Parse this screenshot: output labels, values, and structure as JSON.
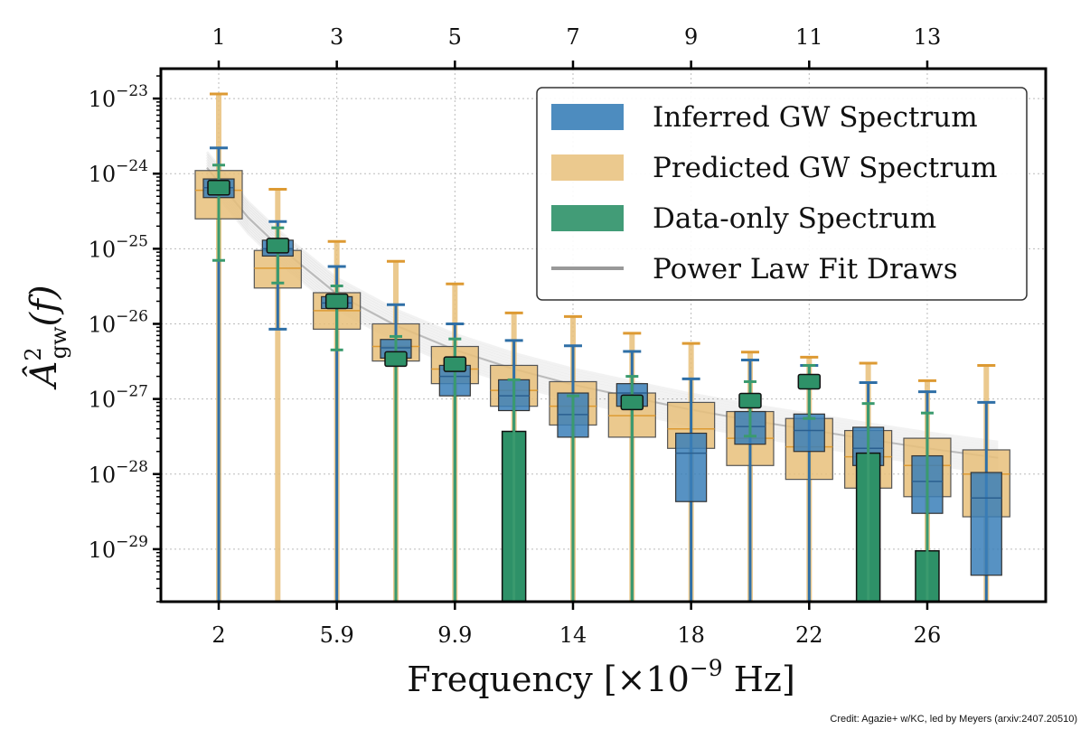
{
  "chart_data": {
    "type": "bar",
    "title": "",
    "xlabel": "Frequency [×10",
    "xlabel_exp": "−9",
    "xlabel_unit": " Hz]",
    "ylabel_main": "Â",
    "ylabel_sup": "2",
    "ylabel_sub": "gw",
    "ylabel_tail": "(f)",
    "yscale": "log",
    "ylim": [
      2e-30,
      2.5e-23
    ],
    "xlim": [
      0,
      14.5
    ],
    "bottom_ticks": [
      {
        "pos": 1,
        "label": "2"
      },
      {
        "pos": 3,
        "label": "5.9"
      },
      {
        "pos": 5,
        "label": "9.9"
      },
      {
        "pos": 7,
        "label": "14"
      },
      {
        "pos": 9,
        "label": "18"
      },
      {
        "pos": 11,
        "label": "22"
      },
      {
        "pos": 13,
        "label": "26"
      }
    ],
    "top_ticks": [
      {
        "pos": 1,
        "label": "1"
      },
      {
        "pos": 3,
        "label": "3"
      },
      {
        "pos": 5,
        "label": "5"
      },
      {
        "pos": 7,
        "label": "7"
      },
      {
        "pos": 9,
        "label": "9"
      },
      {
        "pos": 11,
        "label": "11"
      },
      {
        "pos": 13,
        "label": "13"
      }
    ],
    "y_ticks": [
      {
        "exp": -23,
        "label_base": "10",
        "label_exp": "−23"
      },
      {
        "exp": -24,
        "label_base": "10",
        "label_exp": "−24"
      },
      {
        "exp": -25,
        "label_base": "10",
        "label_exp": "−25"
      },
      {
        "exp": -26,
        "label_base": "10",
        "label_exp": "−26"
      },
      {
        "exp": -27,
        "label_base": "10",
        "label_exp": "−27"
      },
      {
        "exp": -28,
        "label_base": "10",
        "label_exp": "−28"
      },
      {
        "exp": -29,
        "label_base": "10",
        "label_exp": "−29"
      }
    ],
    "grid": true,
    "legend_position": "top-right",
    "legend": [
      {
        "label": "Inferred GW Spectrum",
        "kind": "box",
        "color": "#3a7fb8"
      },
      {
        "label": "Predicted GW Spectrum",
        "kind": "box",
        "color": "#e8c07a"
      },
      {
        "label": "Data-only Spectrum",
        "kind": "box",
        "color": "#2e9168"
      },
      {
        "label": "Power Law Fit Draws",
        "kind": "line",
        "color": "#999999"
      }
    ],
    "colors": {
      "inferred": "#3a7fb8",
      "inferred_err": "#2f6fa6",
      "predicted": "#e8c07a",
      "predicted_err": "#dd9a33",
      "dataonly": "#2e9168",
      "dataonly_err": "#3a9a6e",
      "powerlaw": "#555555"
    },
    "series": [
      {
        "name": "Predicted GW Spectrum",
        "x": [
          1,
          2,
          3,
          4,
          5,
          6,
          7,
          8,
          9,
          10,
          11,
          12,
          13,
          14
        ],
        "median": [
          6e-25,
          5.5e-26,
          1.5e-26,
          5e-27,
          2.5e-27,
          1.3e-27,
          8e-28,
          6e-28,
          4e-28,
          3e-28,
          2.3e-28,
          1.7e-28,
          1.3e-28,
          1e-28
        ],
        "box_low": [
          2.5e-25,
          3e-26,
          8.5e-27,
          3.2e-27,
          1.6e-27,
          8e-28,
          4.5e-28,
          3.1e-28,
          2.2e-28,
          1.3e-28,
          8.5e-29,
          6.5e-29,
          5e-29,
          2.7e-29
        ],
        "box_high": [
          1.1e-24,
          9.5e-26,
          2.6e-26,
          1e-26,
          5e-27,
          2.8e-27,
          1.7e-27,
          1.2e-27,
          9e-28,
          6.8e-28,
          5.5e-28,
          3.8e-28,
          3e-28,
          2.1e-28
        ],
        "err_high": [
          1.15e-23,
          6.2e-25,
          1.25e-25,
          6.8e-26,
          3.4e-26,
          1.4e-26,
          1.25e-26,
          7.5e-27,
          5.5e-27,
          4.2e-27,
          3.6e-27,
          3e-27,
          1.75e-27,
          2.8e-27
        ]
      },
      {
        "name": "Inferred GW Spectrum",
        "x": [
          1,
          2,
          3,
          4,
          5,
          6,
          7,
          8,
          9,
          10,
          11,
          12,
          13,
          14
        ],
        "median": [
          6.5e-25,
          1e-25,
          1.9e-26,
          4.8e-27,
          2e-27,
          1.1e-27,
          6.2e-28,
          1.2e-27,
          1.9e-28,
          4.3e-28,
          3.8e-28,
          2.2e-28,
          8e-29,
          4.8e-29
        ],
        "box_low": [
          4.8e-25,
          8e-26,
          1.6e-26,
          3.5e-27,
          1.1e-27,
          7e-28,
          3.1e-28,
          8e-28,
          4.3e-29,
          2.5e-28,
          2e-28,
          1.3e-28,
          3e-29,
          4.5e-30
        ],
        "box_high": [
          8.5e-25,
          1.3e-25,
          2.3e-26,
          6.2e-27,
          2.8e-27,
          1.8e-27,
          1.2e-27,
          1.6e-27,
          3.5e-28,
          6.8e-28,
          6.3e-28,
          4.2e-28,
          1.75e-28,
          1.05e-28
        ],
        "err_high": [
          2.2e-24,
          2.3e-25,
          5.8e-26,
          1.8e-26,
          1e-26,
          6e-27,
          5.1e-27,
          4.3e-27,
          1.85e-27,
          3.3e-27,
          2.8e-27,
          1.65e-27,
          1.25e-27,
          9e-28
        ],
        "err_low": [
          null,
          8.5e-27,
          null,
          null,
          null,
          null,
          null,
          null,
          null,
          null,
          null,
          null,
          null,
          null
        ]
      },
      {
        "name": "Data-only Spectrum",
        "x": [
          1,
          2,
          3,
          4,
          5,
          6,
          7,
          8,
          9,
          10,
          11,
          12,
          13,
          14
        ],
        "median": [
          6.5e-25,
          1.1e-25,
          2e-26,
          3.4e-27,
          2.9e-27,
          null,
          null,
          9e-28,
          null,
          9.5e-28,
          1.7e-27,
          null,
          null,
          null
        ],
        "err_high": [
          1.3e-24,
          1.9e-25,
          3.2e-26,
          6.8e-27,
          6.3e-27,
          1.8e-27,
          1.1e-27,
          2e-27,
          null,
          1.7e-27,
          2.8e-27,
          8.7e-28,
          6.5e-28,
          null
        ],
        "err_low": [
          7e-26,
          3.5e-26,
          4.5e-27,
          null,
          null,
          null,
          null,
          null,
          null,
          3.2e-28,
          5.5e-28,
          null,
          null,
          null
        ],
        "upper_limit_bar": [
          null,
          null,
          null,
          null,
          null,
          3.7e-28,
          null,
          null,
          null,
          null,
          null,
          1.9e-28,
          9.5e-30,
          null
        ]
      },
      {
        "name": "Power Law Fit Draws",
        "x": [
          0.8,
          1.5,
          2,
          3,
          4,
          5,
          6,
          7,
          8,
          9,
          10,
          11,
          12,
          13,
          14.2
        ],
        "median": [
          1.2e-24,
          2.6e-25,
          1.1e-25,
          2.5e-26,
          9.5e-27,
          4.5e-27,
          2.5e-27,
          1.55e-27,
          1.05e-27,
          7.2e-28,
          5.2e-28,
          3.9e-28,
          2.9e-28,
          2.2e-28,
          1.65e-28
        ]
      }
    ]
  },
  "credit": "Credit: Agazie+ w/KC, led by Meyers (arxiv:2407.20510)"
}
